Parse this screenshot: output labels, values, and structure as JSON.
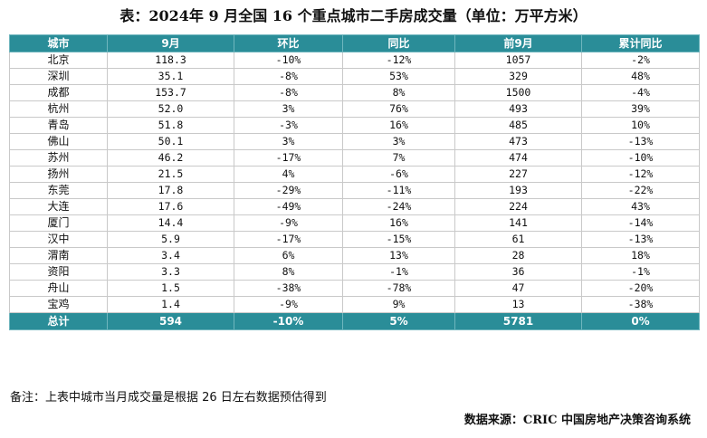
{
  "title": "表：2024年 9 月全国 16 个重点城市二手房成交量（单位：万平方米）",
  "table": {
    "headers": [
      "城市",
      "9月",
      "环比",
      "同比",
      "前9月",
      "累计同比"
    ],
    "rows": [
      [
        "北京",
        "118.3",
        "-10%",
        "-12%",
        "1057",
        "-2%"
      ],
      [
        "深圳",
        "35.1",
        "-8%",
        "53%",
        "329",
        "48%"
      ],
      [
        "成都",
        "153.7",
        "-8%",
        "8%",
        "1500",
        "-4%"
      ],
      [
        "杭州",
        "52.0",
        "3%",
        "76%",
        "493",
        "39%"
      ],
      [
        "青岛",
        "51.8",
        "-3%",
        "16%",
        "485",
        "10%"
      ],
      [
        "佛山",
        "50.1",
        "3%",
        "3%",
        "473",
        "-13%"
      ],
      [
        "苏州",
        "46.2",
        "-17%",
        "7%",
        "474",
        "-10%"
      ],
      [
        "扬州",
        "21.5",
        "4%",
        "-6%",
        "227",
        "-12%"
      ],
      [
        "东莞",
        "17.8",
        "-29%",
        "-11%",
        "193",
        "-22%"
      ],
      [
        "大连",
        "17.6",
        "-49%",
        "-24%",
        "224",
        "43%"
      ],
      [
        "厦门",
        "14.4",
        "-9%",
        "16%",
        "141",
        "-14%"
      ],
      [
        "汉中",
        "5.9",
        "-17%",
        "-15%",
        "61",
        "-13%"
      ],
      [
        "渭南",
        "3.4",
        "6%",
        "13%",
        "28",
        "18%"
      ],
      [
        "资阳",
        "3.3",
        "8%",
        "-1%",
        "36",
        "-1%"
      ],
      [
        "舟山",
        "1.5",
        "-38%",
        "-78%",
        "47",
        "-20%"
      ],
      [
        "宝鸡",
        "1.4",
        "-9%",
        "9%",
        "13",
        "-38%"
      ]
    ],
    "total": [
      "总计",
      "594",
      "-10%",
      "5%",
      "5781",
      "0%"
    ]
  },
  "note": "备注：上表中城市当月成交量是根据 26 日左右数据预估得到",
  "source": "数据来源：CRIC 中国房地产决策咨询系统",
  "colors": {
    "header_bg": "#2a8d98",
    "header_text": "#ffffff",
    "grid": "#c9c9c9"
  }
}
